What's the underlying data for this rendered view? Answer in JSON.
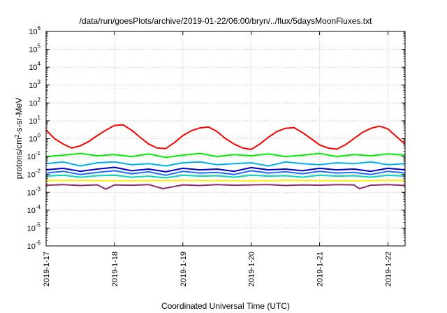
{
  "chart_data": {
    "type": "line",
    "title": "/data/run/goesPlots/archive/2019-01-22/06:00/bryn/../flux/5daysMoonFluxes.txt",
    "xlabel": "Coordinated Universal Time (UTC)",
    "ylabel_parts": {
      "pre": "protons/cm",
      "sup": "2",
      "post": "-s-sr-MeV"
    },
    "x_scale": "time",
    "y_scale": "log",
    "xlim": [
      "2019-01-17T00:00",
      "2019-01-22T06:00"
    ],
    "ylim": [
      1e-06,
      1000000.0
    ],
    "grid": true,
    "legend": "none",
    "x_ticks": [
      "2019-1-17",
      "2019-1-18",
      "2019-1-19",
      "2019-1-20",
      "2019-1-21",
      "2019-1-22"
    ],
    "y_ticks": [
      {
        "value": 1000000.0,
        "base": "10",
        "exp": "6"
      },
      {
        "value": 100000.0,
        "base": "10",
        "exp": "5"
      },
      {
        "value": 10000.0,
        "base": "10",
        "exp": "4"
      },
      {
        "value": 1000.0,
        "base": "10",
        "exp": "3"
      },
      {
        "value": 100.0,
        "base": "10",
        "exp": "2"
      },
      {
        "value": 10.0,
        "base": "10",
        "exp": "1"
      },
      {
        "value": 1.0,
        "base": "10",
        "exp": "0"
      },
      {
        "value": 0.1,
        "base": "10",
        "exp": "-1"
      },
      {
        "value": 0.01,
        "base": "10",
        "exp": "-2"
      },
      {
        "value": 0.001,
        "base": "10",
        "exp": "-3"
      },
      {
        "value": 0.0001,
        "base": "10",
        "exp": "-4"
      },
      {
        "value": 1e-05,
        "base": "10",
        "exp": "-5"
      },
      {
        "value": 1e-06,
        "base": "10",
        "exp": "-6"
      }
    ],
    "series": [
      {
        "color": "#ff0000",
        "x": [
          "2019-01-17T00:00",
          "2019-01-17T03:00",
          "2019-01-17T06:00",
          "2019-01-17T09:00",
          "2019-01-17T12:00",
          "2019-01-17T15:00",
          "2019-01-17T18:00",
          "2019-01-17T21:00",
          "2019-01-18T00:00",
          "2019-01-18T03:00",
          "2019-01-18T06:00",
          "2019-01-18T09:00",
          "2019-01-18T12:00",
          "2019-01-18T15:00",
          "2019-01-18T18:00",
          "2019-01-18T21:00",
          "2019-01-19T00:00",
          "2019-01-19T03:00",
          "2019-01-19T06:00",
          "2019-01-19T09:00",
          "2019-01-19T12:00",
          "2019-01-19T15:00",
          "2019-01-19T18:00",
          "2019-01-19T21:00",
          "2019-01-20T00:00",
          "2019-01-20T03:00",
          "2019-01-20T06:00",
          "2019-01-20T09:00",
          "2019-01-20T12:00",
          "2019-01-20T15:00",
          "2019-01-20T18:00",
          "2019-01-20T21:00",
          "2019-01-21T00:00",
          "2019-01-21T03:00",
          "2019-01-21T06:00",
          "2019-01-21T09:00",
          "2019-01-21T12:00",
          "2019-01-21T15:00",
          "2019-01-21T18:00",
          "2019-01-21T21:00",
          "2019-01-22T00:00",
          "2019-01-22T03:00",
          "2019-01-22T06:00"
        ],
        "y": [
          3.0,
          1.0,
          0.5,
          0.3,
          0.4,
          0.7,
          1.5,
          3.0,
          5.5,
          6.0,
          3.0,
          1.2,
          0.5,
          0.3,
          0.28,
          0.6,
          1.5,
          2.8,
          4.0,
          4.5,
          2.5,
          1.0,
          0.5,
          0.3,
          0.25,
          0.5,
          1.2,
          2.5,
          3.8,
          4.2,
          2.2,
          1.0,
          0.45,
          0.3,
          0.26,
          0.45,
          1.0,
          2.2,
          3.8,
          5.0,
          3.5,
          1.3,
          0.5
        ]
      },
      {
        "color": "#00ee00",
        "x": [
          "2019-01-17T00:00",
          "2019-01-17T06:00",
          "2019-01-17T12:00",
          "2019-01-17T18:00",
          "2019-01-18T00:00",
          "2019-01-18T06:00",
          "2019-01-18T12:00",
          "2019-01-18T18:00",
          "2019-01-19T00:00",
          "2019-01-19T06:00",
          "2019-01-19T12:00",
          "2019-01-19T18:00",
          "2019-01-20T00:00",
          "2019-01-20T06:00",
          "2019-01-20T12:00",
          "2019-01-20T18:00",
          "2019-01-21T00:00",
          "2019-01-21T06:00",
          "2019-01-21T12:00",
          "2019-01-21T18:00",
          "2019-01-22T00:00",
          "2019-01-22T06:00"
        ],
        "y": [
          0.1,
          0.12,
          0.15,
          0.11,
          0.13,
          0.1,
          0.14,
          0.09,
          0.12,
          0.15,
          0.1,
          0.13,
          0.11,
          0.14,
          0.1,
          0.12,
          0.15,
          0.1,
          0.13,
          0.11,
          0.14,
          0.12
        ]
      },
      {
        "color": "#00b0f0",
        "x": [
          "2019-01-17T00:00",
          "2019-01-17T06:00",
          "2019-01-17T12:00",
          "2019-01-17T18:00",
          "2019-01-18T00:00",
          "2019-01-18T06:00",
          "2019-01-18T12:00",
          "2019-01-18T18:00",
          "2019-01-19T00:00",
          "2019-01-19T06:00",
          "2019-01-19T12:00",
          "2019-01-19T18:00",
          "2019-01-20T00:00",
          "2019-01-20T06:00",
          "2019-01-20T12:00",
          "2019-01-20T18:00",
          "2019-01-21T00:00",
          "2019-01-21T06:00",
          "2019-01-21T12:00",
          "2019-01-21T18:00",
          "2019-01-22T00:00",
          "2019-01-22T06:00"
        ],
        "y": [
          0.04,
          0.05,
          0.03,
          0.045,
          0.05,
          0.035,
          0.04,
          0.03,
          0.045,
          0.05,
          0.035,
          0.04,
          0.045,
          0.03,
          0.05,
          0.04,
          0.035,
          0.045,
          0.04,
          0.05,
          0.035,
          0.04
        ]
      },
      {
        "color": "#0000cc",
        "x": [
          "2019-01-17T00:00",
          "2019-01-17T06:00",
          "2019-01-17T12:00",
          "2019-01-17T18:00",
          "2019-01-18T00:00",
          "2019-01-18T06:00",
          "2019-01-18T12:00",
          "2019-01-18T18:00",
          "2019-01-19T00:00",
          "2019-01-19T06:00",
          "2019-01-19T12:00",
          "2019-01-19T18:00",
          "2019-01-20T00:00",
          "2019-01-20T06:00",
          "2019-01-20T12:00",
          "2019-01-20T18:00",
          "2019-01-21T00:00",
          "2019-01-21T06:00",
          "2019-01-21T12:00",
          "2019-01-21T18:00",
          "2019-01-22T00:00",
          "2019-01-22T06:00"
        ],
        "y": [
          0.018,
          0.022,
          0.015,
          0.02,
          0.025,
          0.016,
          0.02,
          0.014,
          0.022,
          0.018,
          0.02,
          0.015,
          0.024,
          0.018,
          0.02,
          0.016,
          0.022,
          0.018,
          0.02,
          0.015,
          0.022,
          0.018
        ]
      },
      {
        "color": "#1e6eff",
        "x": [
          "2019-01-17T00:00",
          "2019-01-17T06:00",
          "2019-01-17T12:00",
          "2019-01-17T18:00",
          "2019-01-18T00:00",
          "2019-01-18T06:00",
          "2019-01-18T12:00",
          "2019-01-18T18:00",
          "2019-01-19T00:00",
          "2019-01-19T06:00",
          "2019-01-19T12:00",
          "2019-01-19T18:00",
          "2019-01-20T00:00",
          "2019-01-20T06:00",
          "2019-01-20T12:00",
          "2019-01-20T18:00",
          "2019-01-21T00:00",
          "2019-01-21T06:00",
          "2019-01-21T12:00",
          "2019-01-21T18:00",
          "2019-01-22T00:00",
          "2019-01-22T06:00"
        ],
        "y": [
          0.012,
          0.015,
          0.01,
          0.013,
          0.016,
          0.011,
          0.014,
          0.009,
          0.015,
          0.012,
          0.013,
          0.01,
          0.016,
          0.012,
          0.014,
          0.011,
          0.015,
          0.012,
          0.013,
          0.01,
          0.015,
          0.012
        ]
      },
      {
        "color": "#00d8b8",
        "x": [
          "2019-01-17T00:00",
          "2019-01-17T06:00",
          "2019-01-17T12:00",
          "2019-01-17T18:00",
          "2019-01-18T00:00",
          "2019-01-18T06:00",
          "2019-01-18T12:00",
          "2019-01-18T18:00",
          "2019-01-19T00:00",
          "2019-01-19T06:00",
          "2019-01-19T12:00",
          "2019-01-19T18:00",
          "2019-01-20T00:00",
          "2019-01-20T06:00",
          "2019-01-20T12:00",
          "2019-01-20T18:00",
          "2019-01-21T00:00",
          "2019-01-21T06:00",
          "2019-01-21T12:00",
          "2019-01-21T18:00",
          "2019-01-22T00:00",
          "2019-01-22T06:00"
        ],
        "y": [
          0.008,
          0.009,
          0.007,
          0.0085,
          0.009,
          0.007,
          0.008,
          0.0065,
          0.009,
          0.008,
          0.0085,
          0.007,
          0.009,
          0.008,
          0.0085,
          0.007,
          0.009,
          0.008,
          0.0085,
          0.007,
          0.009,
          0.008
        ]
      },
      {
        "color": "#ffee00",
        "x": [
          "2019-01-17T00:00",
          "2019-01-17T12:00",
          "2019-01-18T00:00",
          "2019-01-18T12:00",
          "2019-01-19T00:00",
          "2019-01-19T12:00",
          "2019-01-20T00:00",
          "2019-01-20T12:00",
          "2019-01-21T00:00",
          "2019-01-21T12:00",
          "2019-01-22T00:00",
          "2019-01-22T06:00"
        ],
        "y": [
          0.0045,
          0.0046,
          0.0044,
          0.0045,
          0.0046,
          0.0045,
          0.0044,
          0.0046,
          0.0045,
          0.0044,
          0.0046,
          0.0045
        ]
      },
      {
        "color": "#8b2e6e",
        "x": [
          "2019-01-17T00:00",
          "2019-01-17T06:00",
          "2019-01-17T12:00",
          "2019-01-17T18:00",
          "2019-01-17T21:00",
          "2019-01-18T00:00",
          "2019-01-18T06:00",
          "2019-01-18T12:00",
          "2019-01-18T17:00",
          "2019-01-19T00:00",
          "2019-01-19T06:00",
          "2019-01-19T12:00",
          "2019-01-19T18:00",
          "2019-01-20T00:00",
          "2019-01-20T06:00",
          "2019-01-20T12:00",
          "2019-01-20T18:00",
          "2019-01-21T00:00",
          "2019-01-21T06:00",
          "2019-01-21T12:00",
          "2019-01-21T14:00",
          "2019-01-21T18:00",
          "2019-01-22T00:00",
          "2019-01-22T06:00"
        ],
        "y": [
          0.0025,
          0.0027,
          0.0024,
          0.0026,
          0.0015,
          0.0026,
          0.0025,
          0.0027,
          0.0016,
          0.0026,
          0.0024,
          0.0027,
          0.0025,
          0.0026,
          0.0027,
          0.0024,
          0.0026,
          0.0025,
          0.0027,
          0.0026,
          0.0016,
          0.0025,
          0.0027,
          0.0024
        ]
      }
    ]
  }
}
